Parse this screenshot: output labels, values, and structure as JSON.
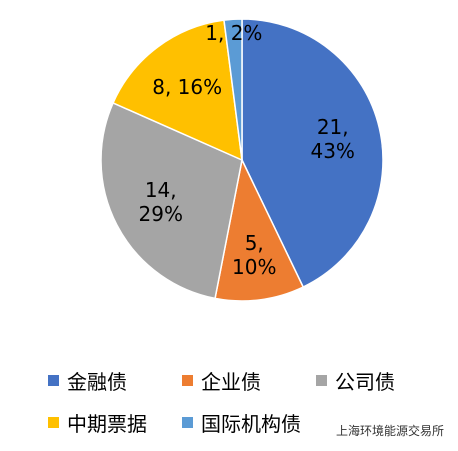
{
  "chart_data": {
    "type": "pie",
    "categories": [
      "金融债",
      "企业债",
      "公司债",
      "中期票据",
      "国际机构债"
    ],
    "values": [
      21,
      5,
      14,
      8,
      1
    ],
    "value_labels": [
      "21, 43%",
      "5, 10%",
      "14, 29%",
      "8, 16%",
      "1, 2%"
    ],
    "colors": [
      "#4472c4",
      "#ed7d31",
      "#a5a5a5",
      "#ffc000",
      "#5b9bd5"
    ],
    "legend": "bottom"
  },
  "watermark": "上海环境能源交易所"
}
